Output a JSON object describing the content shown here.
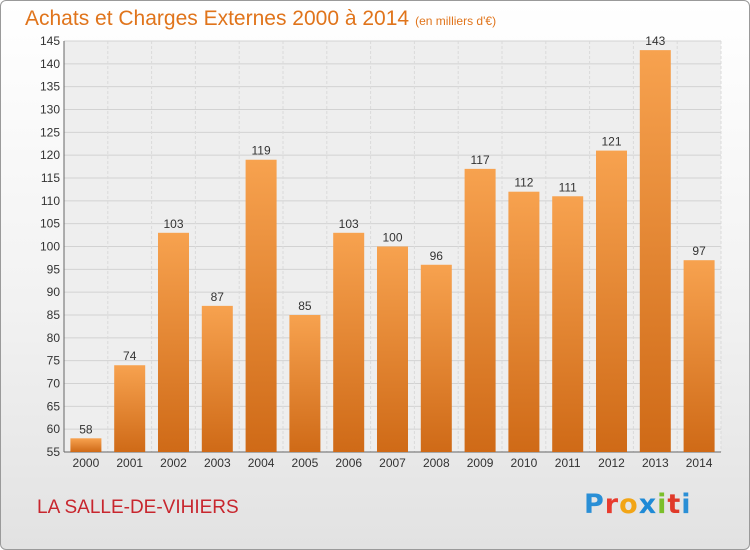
{
  "title": {
    "main": "Achats et Charges Externes 2000 à 2014",
    "unit": "(en milliers d'€)"
  },
  "commune": "LA SALLE-DE-VIHIERS",
  "logo": {
    "letters": [
      "P",
      "r",
      "o",
      "x",
      "i",
      "t",
      "i"
    ],
    "colors": [
      "#2a8fd6",
      "#e83b2e",
      "#f2a516",
      "#1f8ad6",
      "#7bbf2a",
      "#e03a2a",
      "#2a8fd6"
    ]
  },
  "colors": {
    "title": "#e0741b",
    "bar_top": "#f7a24f",
    "bar_bottom": "#cf6a17",
    "commune": "#c8262e"
  },
  "chart_data": {
    "type": "bar",
    "categories": [
      "2000",
      "2001",
      "2002",
      "2003",
      "2004",
      "2005",
      "2006",
      "2007",
      "2008",
      "2009",
      "2010",
      "2011",
      "2012",
      "2013",
      "2014"
    ],
    "values": [
      58,
      74,
      103,
      87,
      119,
      85,
      103,
      100,
      96,
      117,
      112,
      111,
      121,
      143,
      97
    ],
    "value_labels": [
      "58",
      "74",
      "103",
      "87",
      "119",
      "85",
      "103",
      "100",
      "96",
      "117",
      "112",
      "111",
      "121",
      "143",
      "97"
    ],
    "y_ticks": [
      55,
      60,
      65,
      70,
      75,
      80,
      85,
      90,
      95,
      100,
      105,
      110,
      115,
      120,
      125,
      130,
      135,
      140,
      145
    ],
    "ylim": [
      55,
      145
    ],
    "grid": true
  }
}
